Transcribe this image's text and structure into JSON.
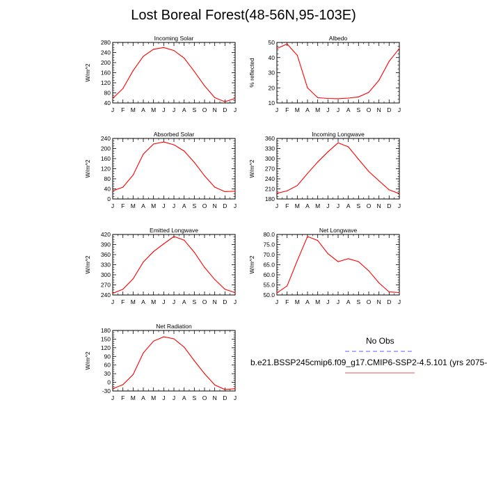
{
  "title": "Lost Boreal Forest(48-56N,95-103E)",
  "months": [
    "J",
    "F",
    "M",
    "A",
    "M",
    "J",
    "J",
    "A",
    "S",
    "O",
    "N",
    "D",
    "J"
  ],
  "legend": {
    "obs_label": "No Obs",
    "obs_color": "#7f7fff",
    "model_label": "b.e21.BSSP245cmip6.f09_g17.CMIP6-SSP2-4.5.101 (yrs 2075-",
    "model_color": "#e8797f"
  },
  "series_color": "#ff0000",
  "chart_data": [
    {
      "type": "line",
      "title": "Incoming Solar",
      "ylabel": "W/m^2",
      "ylim": [
        40,
        280
      ],
      "yticks": [
        40,
        80,
        120,
        160,
        200,
        240,
        280
      ],
      "ytick_labels": [
        "40",
        "80",
        "120",
        "160",
        "200",
        "240",
        "280"
      ],
      "x": [
        "J",
        "F",
        "M",
        "A",
        "M",
        "J",
        "J",
        "A",
        "S",
        "O",
        "N",
        "D",
        "J"
      ],
      "values": [
        58,
        97,
        168,
        225,
        253,
        260,
        248,
        218,
        165,
        108,
        61,
        45,
        58
      ]
    },
    {
      "type": "line",
      "title": "Albedo",
      "ylabel": "% reflected",
      "ylim": [
        10,
        50
      ],
      "yticks": [
        10,
        20,
        30,
        40,
        50
      ],
      "ytick_labels": [
        "10",
        "20",
        "30",
        "40",
        "50"
      ],
      "x": [
        "J",
        "F",
        "M",
        "A",
        "M",
        "J",
        "J",
        "A",
        "S",
        "O",
        "N",
        "D",
        "J"
      ],
      "values": [
        46,
        49,
        41.5,
        20,
        13.5,
        13,
        12.8,
        13.2,
        14,
        17,
        25,
        37.5,
        46
      ]
    },
    {
      "type": "line",
      "title": "Absorbed Solar",
      "ylabel": "W/m^2",
      "ylim": [
        0,
        240
      ],
      "yticks": [
        0,
        40,
        80,
        120,
        160,
        200,
        240
      ],
      "ytick_labels": [
        "0",
        "40",
        "80",
        "120",
        "160",
        "200",
        "240"
      ],
      "x": [
        "J",
        "F",
        "M",
        "A",
        "M",
        "J",
        "J",
        "A",
        "S",
        "O",
        "N",
        "D",
        "J"
      ],
      "values": [
        32,
        47,
        95,
        178,
        218,
        226,
        215,
        190,
        145,
        92,
        47,
        29,
        31
      ]
    },
    {
      "type": "line",
      "title": "Incoming Longwave",
      "ylabel": "W/m^2",
      "ylim": [
        180,
        360
      ],
      "yticks": [
        180,
        210,
        240,
        270,
        300,
        330,
        360
      ],
      "ytick_labels": [
        "180",
        "210",
        "240",
        "270",
        "300",
        "330",
        "360"
      ],
      "x": [
        "J",
        "F",
        "M",
        "A",
        "M",
        "J",
        "J",
        "A",
        "S",
        "O",
        "N",
        "D",
        "J"
      ],
      "values": [
        197,
        204,
        220,
        256,
        290,
        320,
        347,
        335,
        298,
        262,
        234,
        207,
        196
      ]
    },
    {
      "type": "line",
      "title": "Emitted Longwave",
      "ylabel": "W/m^2",
      "ylim": [
        240,
        420
      ],
      "yticks": [
        240,
        270,
        300,
        330,
        360,
        390,
        420
      ],
      "ytick_labels": [
        "240",
        "270",
        "300",
        "330",
        "360",
        "390",
        "420"
      ],
      "x": [
        "J",
        "F",
        "M",
        "A",
        "M",
        "J",
        "J",
        "A",
        "S",
        "O",
        "N",
        "D",
        "J"
      ],
      "values": [
        245,
        257,
        288,
        338,
        369,
        392,
        414,
        403,
        367,
        322,
        286,
        257,
        247
      ]
    },
    {
      "type": "line",
      "title": "Net Longwave",
      "ylabel": "W/m^2",
      "ylim": [
        50,
        80
      ],
      "yticks": [
        50,
        55,
        60,
        65,
        70,
        75,
        80
      ],
      "ytick_labels": [
        "50.0",
        "55.0",
        "60.0",
        "65.0",
        "70.0",
        "75.0",
        "80.0"
      ],
      "x": [
        "J",
        "F",
        "M",
        "A",
        "M",
        "J",
        "J",
        "A",
        "S",
        "O",
        "N",
        "D",
        "J"
      ],
      "values": [
        51,
        54.5,
        67,
        79,
        77,
        70.5,
        66.5,
        68,
        66.5,
        62,
        56,
        51.5,
        51.2
      ]
    },
    {
      "type": "line",
      "title": "Net Radiation",
      "ylabel": "W/m^2",
      "ylim": [
        -30,
        180
      ],
      "yticks": [
        -30,
        0,
        30,
        60,
        90,
        120,
        150,
        180
      ],
      "ytick_labels": [
        "-30",
        "0",
        "30",
        "60",
        "90",
        "120",
        "150",
        "180"
      ],
      "x": [
        "J",
        "F",
        "M",
        "A",
        "M",
        "J",
        "J",
        "A",
        "S",
        "O",
        "N",
        "D",
        "J"
      ],
      "values": [
        -22,
        -8,
        27,
        102,
        143,
        158,
        151,
        122,
        75,
        30,
        -9,
        -25,
        -22
      ]
    }
  ]
}
